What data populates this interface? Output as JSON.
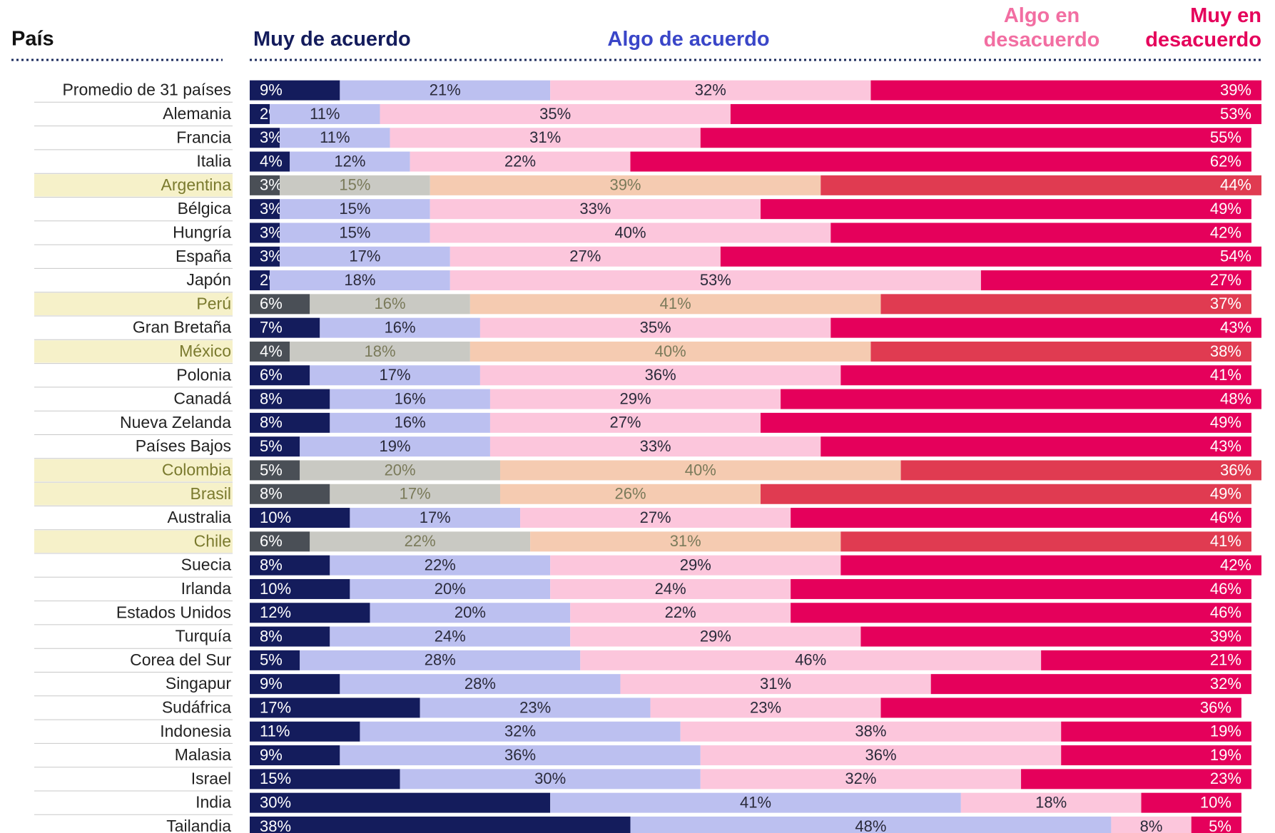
{
  "chart_data": {
    "type": "stacked_barh",
    "category_header": "País",
    "categories": [
      "Promedio de 31 países",
      "Alemania",
      "Francia",
      "Italia",
      "Argentina",
      "Bélgica",
      "Hungría",
      "España",
      "Japón",
      "Perú",
      "Gran Bretaña",
      "México",
      "Polonia",
      "Canadá",
      "Nueva Zelanda",
      "Países Bajos",
      "Colombia",
      "Brasil",
      "Australia",
      "Chile",
      "Suecia",
      "Irlanda",
      "Estados Unidos",
      "Turquía",
      "Corea del Sur",
      "Singapur",
      "Sudáfrica",
      "Indonesia",
      "Malasia",
      "Israel",
      "India",
      "Tailandia"
    ],
    "xlim": [
      0,
      101
    ],
    "highlight_indices": [
      4,
      9,
      11,
      16,
      17,
      19
    ],
    "highlight_label_color": "#7a7a2e",
    "highlight_background": "#f6f1c9",
    "series": [
      {
        "name": "Muy de acuerdo",
        "color": "#141c5c",
        "header_color": "#141c5c",
        "highlight_color": "#4a4f56",
        "values": [
          9,
          2,
          3,
          4,
          3,
          3,
          3,
          3,
          2,
          6,
          7,
          4,
          6,
          8,
          8,
          5,
          5,
          8,
          10,
          6,
          8,
          10,
          12,
          8,
          5,
          9,
          17,
          11,
          9,
          15,
          30,
          38
        ],
        "value_labels": [
          "9%",
          "2%",
          "3%",
          "4%",
          "3%",
          "3%",
          "3%",
          "3%",
          "2%",
          "6%",
          "7%",
          "4%",
          "6%",
          "8%",
          "8%",
          "5%",
          "5%",
          "8%",
          "10%",
          "6%",
          "8%",
          "10%",
          "12%",
          "8%",
          "5%",
          "9%",
          "17%",
          "11%",
          "9%",
          "15%",
          "30%",
          "38%"
        ]
      },
      {
        "name": "Algo de acuerdo",
        "color": "#bcc0f0",
        "header_color": "#3a46c8",
        "highlight_color": "#c9c9c3",
        "values": [
          21,
          11,
          11,
          12,
          15,
          15,
          15,
          17,
          18,
          16,
          16,
          18,
          17,
          16,
          16,
          19,
          20,
          17,
          17,
          22,
          22,
          20,
          20,
          24,
          28,
          28,
          23,
          32,
          36,
          30,
          41,
          48
        ],
        "value_labels": [
          "21%",
          "11%",
          "11%",
          "12%",
          "15%",
          "15%",
          "15%",
          "17%",
          "18%",
          "16%",
          "16%",
          "18%",
          "17%",
          "16%",
          "16%",
          "19%",
          "20%",
          "17%",
          "17%",
          "22%",
          "22%",
          "20%",
          "20%",
          "24%",
          "28%",
          "28%",
          "23%",
          "32%",
          "36%",
          "30%",
          "41%",
          "48%"
        ]
      },
      {
        "name": "Algo en desacuerdo",
        "color": "#fcc6dc",
        "header_color": "#f26ea2",
        "highlight_color": "#f5cbb1",
        "values": [
          32,
          35,
          31,
          22,
          39,
          33,
          40,
          27,
          53,
          41,
          35,
          40,
          36,
          29,
          27,
          33,
          40,
          26,
          27,
          31,
          29,
          24,
          22,
          29,
          46,
          31,
          23,
          38,
          36,
          32,
          18,
          8
        ],
        "value_labels": [
          "32%",
          "35%",
          "31%",
          "22%",
          "39%",
          "33%",
          "40%",
          "27%",
          "53%",
          "41%",
          "35%",
          "40%",
          "36%",
          "29%",
          "27%",
          "33%",
          "40%",
          "26%",
          "27%",
          "31%",
          "29%",
          "24%",
          "22%",
          "29%",
          "46%",
          "31%",
          "23%",
          "38%",
          "36%",
          "32%",
          "18%",
          "8%"
        ]
      },
      {
        "name": "Muy en desacuerdo",
        "color": "#e5005b",
        "header_color": "#e5005b",
        "highlight_color": "#e03b51",
        "values": [
          39,
          53,
          55,
          62,
          44,
          49,
          42,
          54,
          27,
          37,
          43,
          38,
          41,
          48,
          49,
          43,
          36,
          49,
          46,
          41,
          42,
          46,
          46,
          39,
          21,
          32,
          36,
          19,
          19,
          23,
          10,
          5
        ],
        "value_labels": [
          "39%",
          "53%",
          "55%",
          "62%",
          "44%",
          "49%",
          "42%",
          "54%",
          "27%",
          "37%",
          "43%",
          "38%",
          "41%",
          "48%",
          "49%",
          "43%",
          "36%",
          "49%",
          "46%",
          "41%",
          "42%",
          "46%",
          "46%",
          "39%",
          "21%",
          "32%",
          "36%",
          "19%",
          "19%",
          "23%",
          "10%",
          "5%"
        ]
      }
    ]
  }
}
